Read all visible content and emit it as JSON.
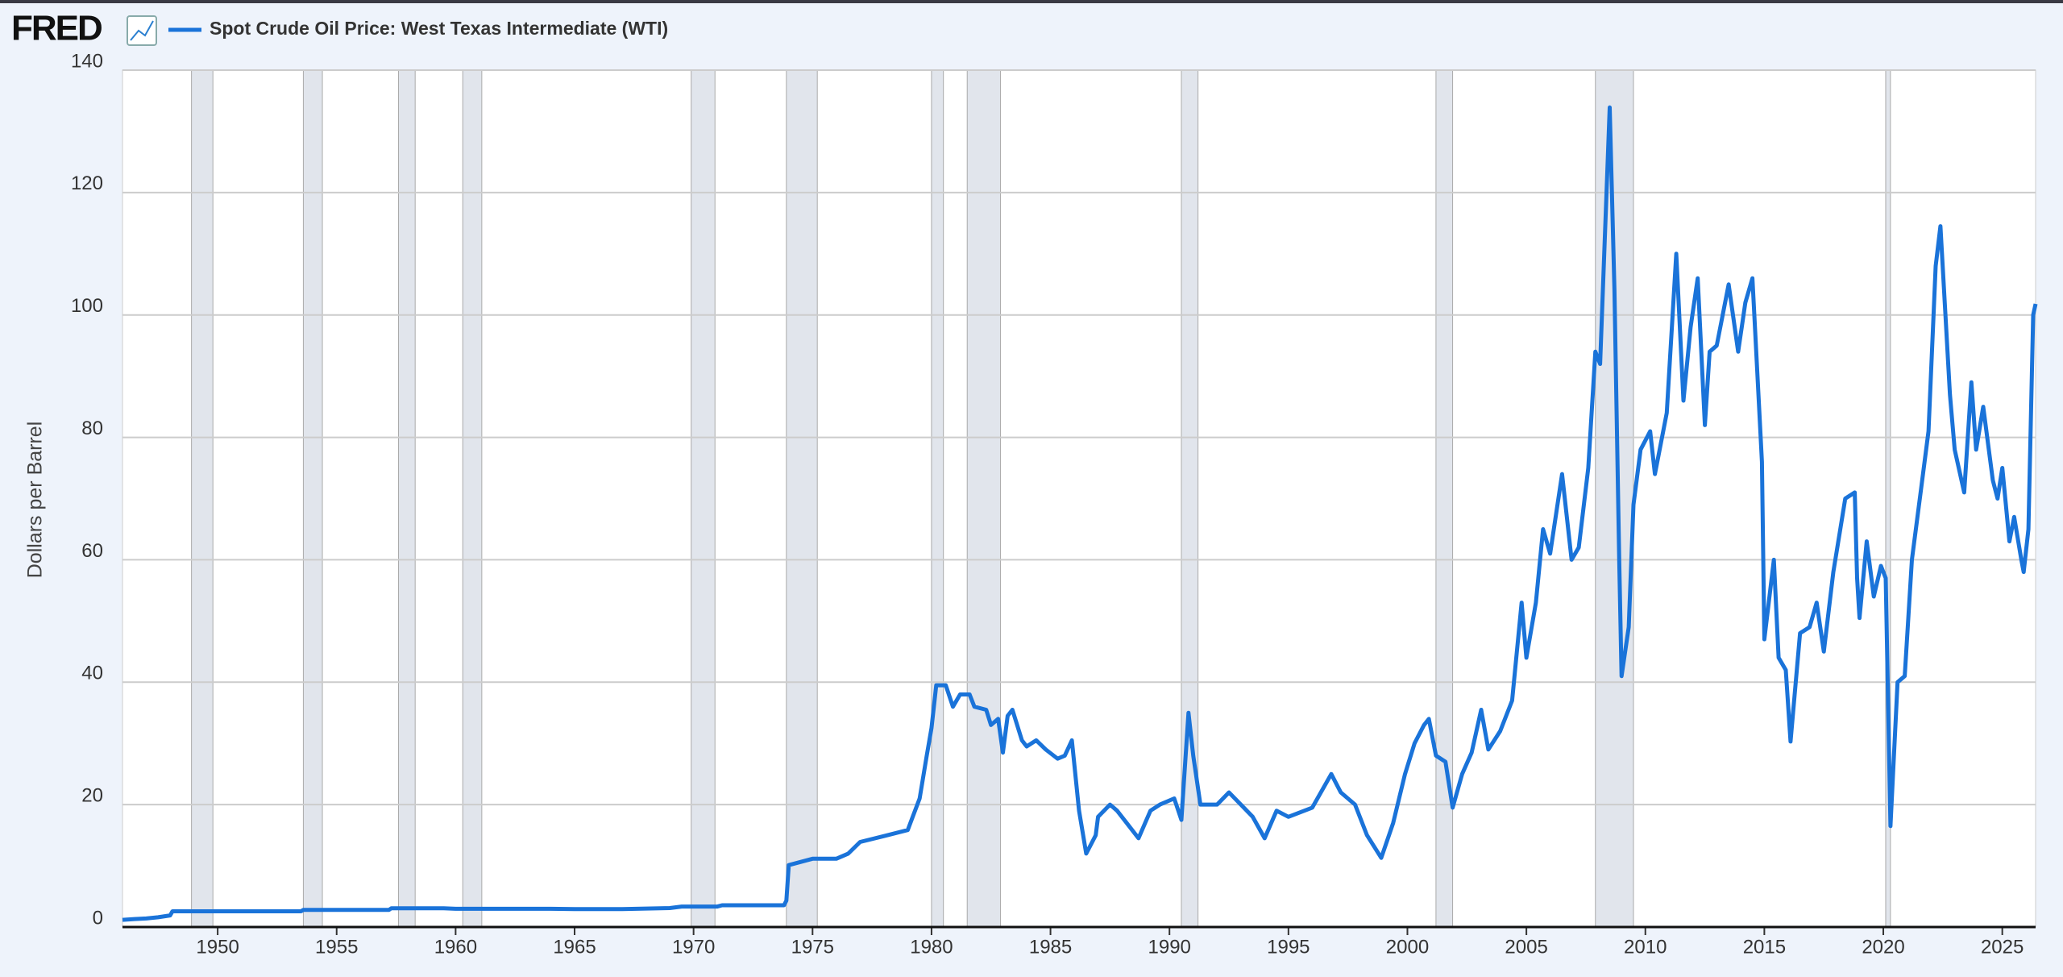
{
  "chart_data": {
    "type": "line",
    "logo": "FRED",
    "ylabel": "Dollars per Barrel",
    "xlim": [
      1946,
      2026.4
    ],
    "xticks": [
      1950,
      1955,
      1960,
      1965,
      1970,
      1975,
      1980,
      1985,
      1990,
      1995,
      2000,
      2005,
      2010,
      2015,
      2020,
      2025
    ],
    "ylim": [
      0,
      140
    ],
    "yticks": [
      0,
      20,
      40,
      60,
      80,
      100,
      120,
      140
    ],
    "grid": true,
    "recession_color": "#e1e5ec",
    "recessions": [
      [
        1948.9,
        1949.8
      ],
      [
        1953.6,
        1954.4
      ],
      [
        1957.6,
        1958.3
      ],
      [
        1960.3,
        1961.1
      ],
      [
        1969.9,
        1970.9
      ],
      [
        1973.9,
        1975.2
      ],
      [
        1980.0,
        1980.5
      ],
      [
        1981.5,
        1982.9
      ],
      [
        1990.5,
        1991.2
      ],
      [
        2001.2,
        2001.9
      ],
      [
        2007.9,
        2009.5
      ],
      [
        2020.1,
        2020.3
      ]
    ],
    "x": [
      1946.0,
      1946.5,
      1947.0,
      1947.5,
      1948.0,
      1948.1,
      1953.5,
      1953.6,
      1957.2,
      1957.3,
      1959.5,
      1960.0,
      1964,
      1965,
      1967,
      1969,
      1969.5,
      1971,
      1971.2,
      1973.8,
      1973.9,
      1974.0,
      1975,
      1976,
      1976.5,
      1977,
      1978,
      1979,
      1979.5,
      1979.8,
      1980.0,
      1980.2,
      1980.6,
      1980.9,
      1981.2,
      1981.6,
      1981.8,
      1982.3,
      1982.5,
      1982.8,
      1983,
      1983.2,
      1983.4,
      1983.8,
      1984,
      1984.4,
      1984.8,
      1985.3,
      1985.6,
      1985.9,
      1986.2,
      1986.5,
      1986.9,
      1987,
      1987.5,
      1987.8,
      1988.2,
      1988.7,
      1989.2,
      1989.6,
      1990.2,
      1990.5,
      1990.8,
      1991.0,
      1991.3,
      1992,
      1992.5,
      1993,
      1993.5,
      1994,
      1994.5,
      1995,
      1996,
      1996.8,
      1997.2,
      1997.8,
      1998.3,
      1998.9,
      1999.4,
      1999.9,
      2000.3,
      2000.7,
      2000.9,
      2001.2,
      2001.6,
      2001.9,
      2002.3,
      2002.7,
      2003.1,
      2003.4,
      2003.9,
      2004.4,
      2004.8,
      2005.0,
      2005.4,
      2005.7,
      2006.0,
      2006.5,
      2006.9,
      2007.2,
      2007.6,
      2007.9,
      2008.1,
      2008.5,
      2008.7,
      2008.9,
      2009.0,
      2009.3,
      2009.5,
      2009.8,
      2010.2,
      2010.4,
      2010.9,
      2011.3,
      2011.6,
      2011.9,
      2012.2,
      2012.5,
      2012.7,
      2013,
      2013.5,
      2013.9,
      2014.2,
      2014.5,
      2014.9,
      2015.0,
      2015.4,
      2015.6,
      2015.9,
      2016.1,
      2016.5,
      2016.9,
      2017.2,
      2017.5,
      2017.9,
      2018.4,
      2018.8,
      2018.9,
      2019.0,
      2019.3,
      2019.6,
      2019.9,
      2020.1,
      2020.3,
      2020.6,
      2020.9,
      2021.2,
      2021.6,
      2021.9,
      2022.2,
      2022.4,
      2022.8,
      2023.0,
      2023.4,
      2023.7,
      2023.9,
      2024.2,
      2024.6,
      2024.8,
      2025.0,
      2025.3,
      2025.5,
      2025.8,
      2025.9,
      2026.1,
      2026.3,
      2026.4
    ],
    "series": [
      {
        "name": "Spot Crude Oil Price: West Texas Intermediate (WTI)",
        "color": "#1a73d9",
        "values": [
          1.17,
          1.3,
          1.4,
          1.6,
          1.9,
          2.57,
          2.57,
          2.8,
          2.8,
          3.07,
          3.07,
          2.97,
          2.97,
          2.92,
          2.92,
          3.1,
          3.35,
          3.35,
          3.56,
          3.56,
          4.31,
          10.11,
          11.16,
          11.16,
          12,
          13.9,
          14.85,
          15.85,
          21,
          28,
          32.5,
          39.5,
          39.5,
          36,
          38,
          38,
          36,
          35.5,
          33,
          34,
          28.5,
          34.5,
          35.5,
          30.5,
          29.5,
          30.5,
          29,
          27.5,
          28,
          30.5,
          19,
          12,
          15,
          18,
          20,
          19,
          17,
          14.5,
          19,
          20,
          21,
          17.5,
          35,
          28,
          20,
          20,
          22,
          20,
          18,
          14.5,
          19,
          18,
          19.5,
          25,
          22,
          20,
          15,
          11.3,
          17,
          25,
          30,
          33,
          34,
          28,
          27,
          19.5,
          25,
          28.5,
          35.5,
          29,
          32,
          37,
          53,
          44,
          53,
          65,
          61,
          74,
          60,
          62,
          75,
          94,
          92,
          133.9,
          104,
          60,
          41,
          49,
          69,
          78,
          81,
          74,
          84,
          110,
          86,
          98,
          106,
          82,
          94,
          95,
          105,
          94,
          102,
          106,
          76,
          47,
          60,
          44,
          42,
          30.3,
          48,
          49,
          53,
          45,
          58,
          70,
          71,
          57,
          50.5,
          63,
          54,
          59,
          57,
          16.5,
          40,
          41,
          60,
          72,
          81,
          108,
          114.5,
          87,
          78,
          71,
          89,
          78,
          85,
          73,
          70,
          75,
          63,
          67,
          60,
          58,
          65,
          100,
          101.8
        ]
      }
    ]
  }
}
